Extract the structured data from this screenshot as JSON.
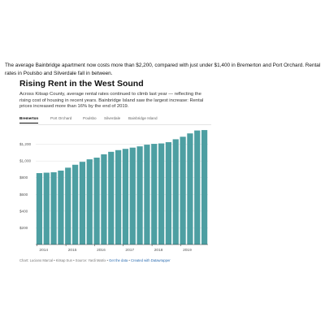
{
  "article": {
    "intro": "The average Bainbridge apartment now costs more than $2,200, compared with just under $1,400 in Bremerton and Port Orchard. Rental rates in Poulsbo and Silverdale fall in between."
  },
  "embed": {
    "title": "Rising Rent in the West Sound",
    "description": "Across Kitsap County, average rental rates continued to climb last year — reflecting the rising cost of housing in recent years. Bainbridge Island saw the largest increase: Rental prices increased more than 16% by the end of 2019.",
    "tabs": [
      {
        "label": "Bremerton",
        "active": true
      },
      {
        "label": "Port Orchard",
        "active": false
      },
      {
        "label": "Poulsbo",
        "active": false
      },
      {
        "label": "Silverdale",
        "active": false
      },
      {
        "label": "Bainbridge Island",
        "active": false
      }
    ],
    "footer": {
      "credit": "Chart: Luciano Marcal • Kitsap Sun • Source: Yardi Matrix •",
      "data_link": "Get the data",
      "made_with": "Created with Datawrapper"
    }
  },
  "chart_data": {
    "type": "bar",
    "title": "",
    "xlabel": "",
    "ylabel": "",
    "x_tick_labels": [
      "2014",
      "2015",
      "2016",
      "2017",
      "2018",
      "2019"
    ],
    "y_tick_labels": [
      "$200",
      "$400",
      "$600",
      "$800",
      "$1,000",
      "$1,200"
    ],
    "y_ticks": [
      200,
      400,
      600,
      800,
      1000,
      1200
    ],
    "ylim": [
      0,
      1400
    ],
    "grid": true,
    "color": "#4d9fa2",
    "series": [
      {
        "categories": [
          "2014 Q1",
          "2014 Q2",
          "2014 Q3",
          "2014 Q4",
          "2015 Q1",
          "2015 Q2",
          "2015 Q3",
          "2015 Q4",
          "2016 Q1",
          "2016 Q2",
          "2016 Q3",
          "2016 Q4",
          "2017 Q1",
          "2017 Q2",
          "2017 Q3",
          "2017 Q4",
          "2018 Q1",
          "2018 Q2",
          "2018 Q3",
          "2018 Q4",
          "2019 Q1",
          "2019 Q2",
          "2019 Q3",
          "2019 Q4"
        ],
        "values": [
          855,
          860,
          865,
          885,
          920,
          955,
          990,
          1020,
          1040,
          1080,
          1110,
          1130,
          1145,
          1160,
          1175,
          1195,
          1205,
          1210,
          1225,
          1260,
          1290,
          1330,
          1365,
          1370
        ]
      }
    ]
  }
}
